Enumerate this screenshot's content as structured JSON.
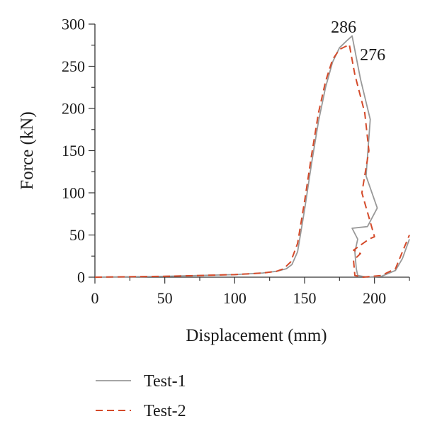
{
  "chart_data": {
    "type": "line",
    "xlabel": "Displacement (mm)",
    "ylabel": "Force (kN)",
    "xlim": [
      0,
      225
    ],
    "ylim": [
      0,
      300
    ],
    "xticks": [
      0,
      50,
      100,
      150,
      200
    ],
    "yticks": [
      0,
      50,
      100,
      150,
      200,
      250,
      300
    ],
    "grid": false,
    "legend": "bottom-left",
    "annotations": [
      {
        "text": "286",
        "x": 184,
        "y": 286
      },
      {
        "text": "276",
        "x": 182,
        "y": 276
      }
    ],
    "series": [
      {
        "name": "Test-1",
        "color": "#999999",
        "dash": "solid",
        "x": [
          0,
          50,
          100,
          120,
          130,
          137,
          141,
          145,
          150,
          155,
          160,
          165,
          170,
          175,
          180,
          184,
          190,
          197,
          194,
          202,
          195,
          184,
          188,
          186,
          187,
          188,
          195,
          205,
          215,
          220,
          225
        ],
        "y": [
          0,
          1,
          3,
          5,
          7,
          10,
          15,
          30,
          80,
          135,
          185,
          225,
          255,
          272,
          280,
          286,
          235,
          187,
          120,
          82,
          60,
          58,
          45,
          30,
          10,
          2,
          0,
          1,
          8,
          22,
          45
        ]
      },
      {
        "name": "Test-2",
        "color": "#d44a2a",
        "dash": "dashed",
        "x": [
          0,
          50,
          100,
          120,
          130,
          135,
          140,
          145,
          150,
          155,
          160,
          165,
          170,
          175,
          180,
          182,
          186,
          193,
          196,
          191,
          200,
          196,
          185,
          190,
          185,
          186,
          192,
          205,
          215,
          220,
          225
        ],
        "y": [
          0,
          1,
          3,
          5,
          7,
          10,
          18,
          40,
          90,
          145,
          195,
          232,
          258,
          270,
          274,
          276,
          240,
          195,
          150,
          100,
          48,
          45,
          32,
          28,
          20,
          2,
          0,
          2,
          10,
          30,
          50
        ]
      }
    ]
  }
}
